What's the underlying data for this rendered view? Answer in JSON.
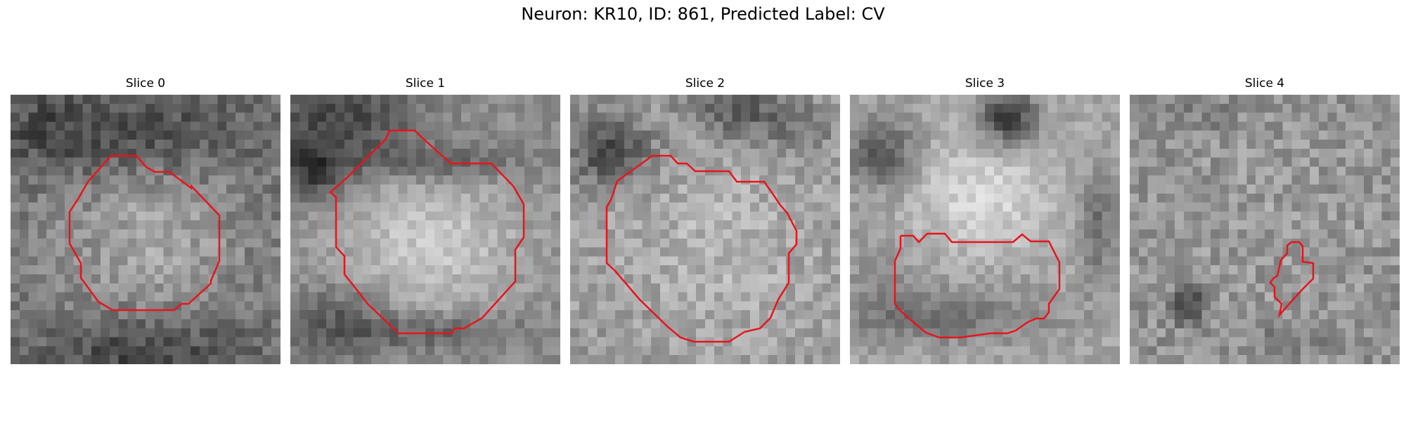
{
  "figure": {
    "title": "Neuron: KR10, ID: 861, Predicted Label: CV"
  },
  "contour_color": "#e8141c",
  "slices": [
    {
      "title": "Slice 0",
      "image": "noisy-grayscale-cell-image",
      "contour": "red-segmentation-outline"
    },
    {
      "title": "Slice 1",
      "image": "noisy-grayscale-cell-image",
      "contour": "red-segmentation-outline"
    },
    {
      "title": "Slice 2",
      "image": "noisy-grayscale-cell-image",
      "contour": "red-segmentation-outline"
    },
    {
      "title": "Slice 3",
      "image": "noisy-grayscale-cell-image",
      "contour": "red-segmentation-outline"
    },
    {
      "title": "Slice 4",
      "image": "noisy-grayscale-cell-image",
      "contour": "red-segmentation-outline"
    }
  ]
}
